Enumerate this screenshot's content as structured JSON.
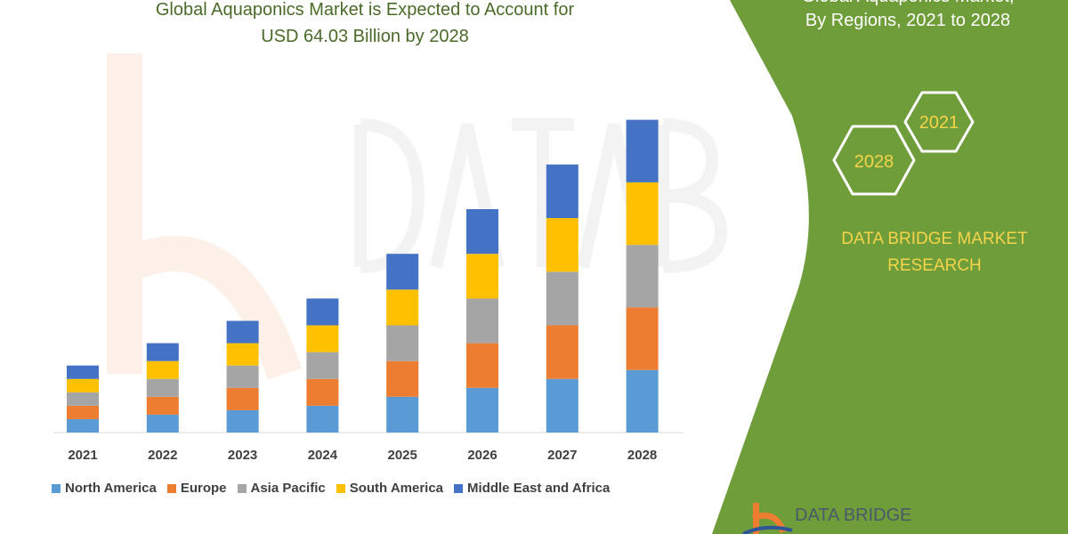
{
  "title_line1": "Global Aquaponics Market is Expected to Account for",
  "title_line2": "USD 64.03 Billion by 2028",
  "side_panel": {
    "title_line1": "Global Aquaponics Market,",
    "title_line2": "By Regions, 2021 to 2028",
    "hex_years": [
      "2028",
      "2021"
    ],
    "brand_line1": "DATA BRIDGE MARKET",
    "brand_line2": "RESEARCH",
    "logo_text": "DATA BRIDGE",
    "panel_color": "#6f9d3a",
    "brand_color": "#f5d44a"
  },
  "watermark_text": "DATA BRIDGE",
  "chart_data": {
    "type": "bar",
    "stacked": true,
    "categories": [
      "2021",
      "2022",
      "2023",
      "2024",
      "2025",
      "2026",
      "2027",
      "2028"
    ],
    "series": [
      {
        "name": "North America",
        "color": "#5b9bd5",
        "values": [
          3,
          4,
          5,
          6,
          8,
          10,
          12,
          14
        ]
      },
      {
        "name": "Europe",
        "color": "#ed7d31",
        "values": [
          3,
          4,
          5,
          6,
          8,
          10,
          12,
          14
        ]
      },
      {
        "name": "Asia Pacific",
        "color": "#a5a5a5",
        "values": [
          3,
          4,
          5,
          6,
          8,
          10,
          12,
          14
        ]
      },
      {
        "name": "South America",
        "color": "#ffc000",
        "values": [
          3,
          4,
          5,
          6,
          8,
          10,
          12,
          14
        ]
      },
      {
        "name": "Middle East and Africa",
        "color": "#4472c4",
        "values": [
          3,
          4,
          5,
          6,
          8,
          10,
          12,
          14
        ]
      }
    ],
    "y_axis_shown": false,
    "grid": false,
    "legend_position": "bottom"
  }
}
